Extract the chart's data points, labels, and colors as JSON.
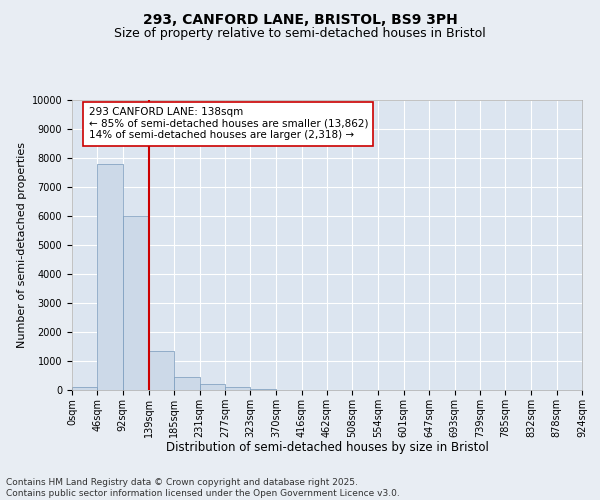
{
  "title1": "293, CANFORD LANE, BRISTOL, BS9 3PH",
  "title2": "Size of property relative to semi-detached houses in Bristol",
  "xlabel": "Distribution of semi-detached houses by size in Bristol",
  "ylabel": "Number of semi-detached properties",
  "footer1": "Contains HM Land Registry data © Crown copyright and database right 2025.",
  "footer2": "Contains public sector information licensed under the Open Government Licence v3.0.",
  "bin_edges": [
    0,
    46,
    92,
    139,
    185,
    231,
    277,
    323,
    370,
    416,
    462,
    508,
    554,
    601,
    647,
    693,
    739,
    785,
    832,
    878,
    924
  ],
  "bin_labels": [
    "0sqm",
    "46sqm",
    "92sqm",
    "139sqm",
    "185sqm",
    "231sqm",
    "277sqm",
    "323sqm",
    "370sqm",
    "416sqm",
    "462sqm",
    "508sqm",
    "554sqm",
    "601sqm",
    "647sqm",
    "693sqm",
    "739sqm",
    "785sqm",
    "832sqm",
    "878sqm",
    "924sqm"
  ],
  "bar_heights": [
    100,
    7800,
    6000,
    1350,
    450,
    200,
    100,
    50,
    15,
    8,
    3,
    1,
    0,
    0,
    0,
    0,
    0,
    0,
    0,
    0
  ],
  "bar_color": "#ccd9e8",
  "bar_edge_color": "#7799bb",
  "red_line_x": 139,
  "vline_color": "#cc0000",
  "annotation_text": "293 CANFORD LANE: 138sqm\n← 85% of semi-detached houses are smaller (13,862)\n14% of semi-detached houses are larger (2,318) →",
  "annotation_box_color": "#ffffff",
  "annotation_box_edge_color": "#cc0000",
  "ylim": [
    0,
    10000
  ],
  "yticks": [
    0,
    1000,
    2000,
    3000,
    4000,
    5000,
    6000,
    7000,
    8000,
    9000,
    10000
  ],
  "background_color": "#e8edf3",
  "plot_background_color": "#dce5f0",
  "grid_color": "#ffffff",
  "title1_fontsize": 10,
  "title2_fontsize": 9,
  "xlabel_fontsize": 8.5,
  "ylabel_fontsize": 8,
  "tick_fontsize": 7,
  "annotation_fontsize": 7.5,
  "footer_fontsize": 6.5
}
